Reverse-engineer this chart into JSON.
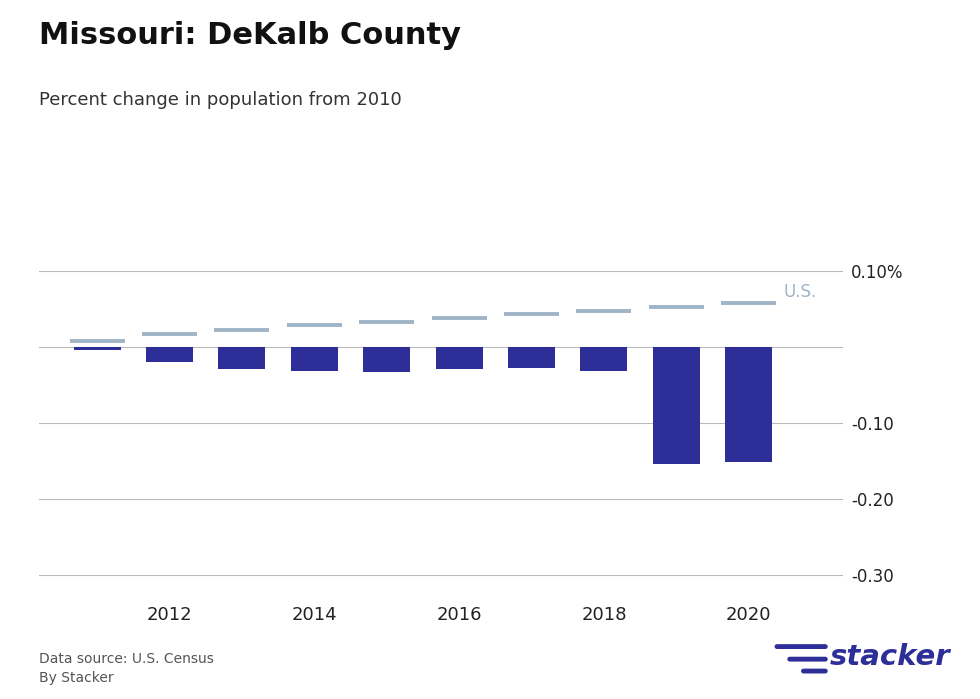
{
  "title": "Missouri: DeKalb County",
  "subtitle": "Percent change in population from 2010",
  "bar_years": [
    2011,
    2012,
    2013,
    2014,
    2015,
    2016,
    2017,
    2018,
    2019,
    2020
  ],
  "bar_values": [
    -0.005,
    -0.02,
    -0.03,
    -0.032,
    -0.033,
    -0.03,
    -0.028,
    -0.032,
    -0.155,
    -0.1516
  ],
  "us_years": [
    2011,
    2012,
    2013,
    2014,
    2015,
    2016,
    2017,
    2018,
    2019,
    2020
  ],
  "us_values": [
    0.008,
    0.016,
    0.022,
    0.028,
    0.033,
    0.038,
    0.043,
    0.047,
    0.052,
    0.058
  ],
  "bar_color": "#2E2E99",
  "us_line_color": "#A0B4C8",
  "us_label": "U.S.",
  "us_label_color": "#A0B4C8",
  "ylim": [
    -0.335,
    0.125
  ],
  "yticks": [
    0.1,
    0.0,
    -0.1,
    -0.2,
    -0.3
  ],
  "ytick_labels": [
    "0.10%",
    "",
    "-0.10",
    "-0.20",
    "-0.30"
  ],
  "xtick_years": [
    2012,
    2014,
    2016,
    2018,
    2020
  ],
  "grid_color": "#BBBBBB",
  "background_color": "#FFFFFF",
  "title_fontsize": 22,
  "subtitle_fontsize": 13,
  "source_text": "Data source: U.S. Census\nBy Stacker",
  "bar_width": 0.65
}
